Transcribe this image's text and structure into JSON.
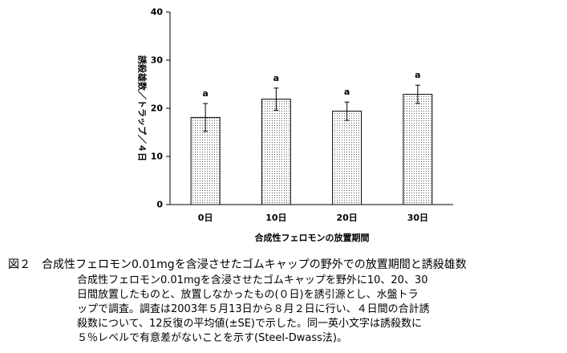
{
  "chart_data": {
    "type": "bar",
    "categories": [
      "0日",
      "10日",
      "20日",
      "30日"
    ],
    "values": [
      18.1,
      21.9,
      19.4,
      22.9
    ],
    "errors": [
      2.9,
      2.3,
      1.9,
      1.9
    ],
    "significance_letters": [
      "a",
      "a",
      "a",
      "a"
    ],
    "xlabel": "合成性フェロモンの放置期間",
    "ylabel": "誘殺雄数／トラップ／４日",
    "ylim": [
      0,
      40
    ],
    "yticks": [
      0,
      10,
      20,
      30,
      40
    ],
    "grid": false,
    "bar_fill": "dotted"
  },
  "caption": {
    "title": "図２　合成性フェロモン0.01mgを含浸させたゴムキャップの野外での放置期間と誘殺雄数",
    "lines": [
      "合成性フェロモン0.01mgを含浸させたゴムキャップを野外に10、20、30",
      "日間放置したものと、放置しなかったもの(０日)を誘引源とし、水盤トラ",
      "ップで調査。調査は2003年５月13日から８月２日に行い、４日間の合計誘",
      "殺数について、12反復の平均値(±SE)で示した。同一英小文字は誘殺数に",
      "５％レベルで有意差がないことを示す(Steel-Dwass法)。"
    ]
  },
  "colors": {
    "bar_dot": "#555555",
    "axis": "#000000"
  }
}
